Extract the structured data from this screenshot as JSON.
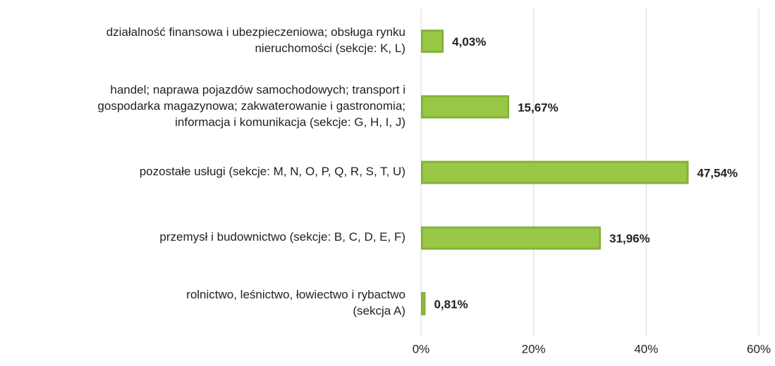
{
  "chart_data": {
    "type": "bar",
    "orientation": "horizontal",
    "categories": [
      "działalność finansowa i ubezpieczeniowa; obsługa rynku\nnieruchomości (sekcje: K, L)",
      "handel; naprawa pojazdów samochodowych; transport i\ngospodarka magazynowa; zakwaterowanie i gastronomia;\ninformacja i komunikacja (sekcje: G, H, I, J)",
      "pozostałe usługi (sekcje: M, N, O, P, Q, R, S, T, U)",
      "przemysł i budownictwo (sekcje: B, C, D, E, F)",
      "rolnictwo, leśnictwo, łowiectwo i rybactwo\n(sekcja A)"
    ],
    "values": [
      4.03,
      15.67,
      47.54,
      31.96,
      0.81
    ],
    "value_labels": [
      "4,03%",
      "15,67%",
      "47,54%",
      "31,96%",
      "0,81%"
    ],
    "color": "#99c847",
    "border_color": "#85b23a",
    "xlim": [
      0,
      60
    ],
    "xticks": [
      {
        "value": 0,
        "label": "0%"
      },
      {
        "value": 20,
        "label": "20%"
      },
      {
        "value": 40,
        "label": "40%"
      },
      {
        "value": 60,
        "label": "60%"
      }
    ],
    "grid": true
  }
}
